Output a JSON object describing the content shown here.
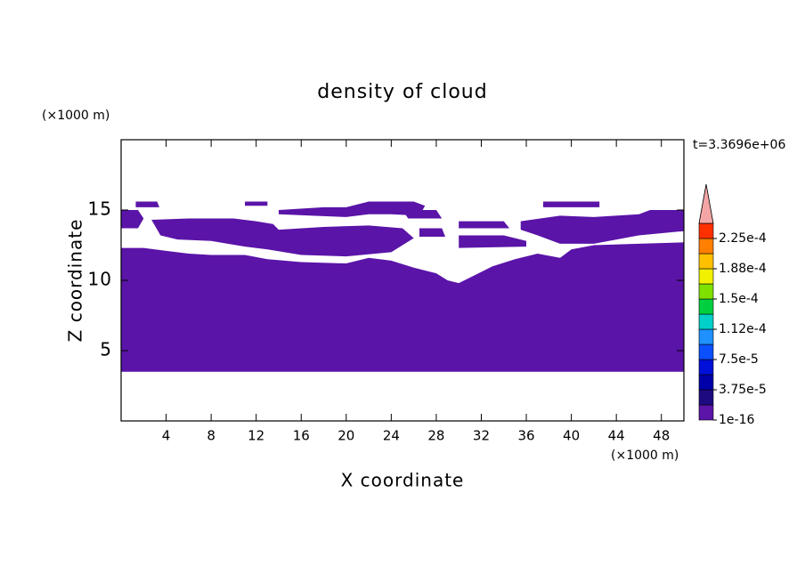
{
  "chart_data": {
    "type": "contour",
    "title": "density of cloud",
    "x_label": "X coordinate",
    "y_label": "Z coordinate",
    "x_unit": "(×1000 m)",
    "y_unit": "(×1000 m)",
    "annotation": "t=3.3696e+06",
    "xlim": [
      0,
      50
    ],
    "ylim": [
      0,
      20
    ],
    "xticks": [
      4,
      8,
      12,
      16,
      20,
      24,
      28,
      32,
      36,
      40,
      44,
      48
    ],
    "yticks": [
      5,
      10,
      15
    ],
    "fill_color": "#5a14a8",
    "regions": [
      {
        "x": [
          0,
          2,
          4,
          6,
          8,
          11,
          13,
          16,
          20,
          22,
          24,
          26,
          28,
          29,
          30,
          31,
          33,
          35,
          37,
          39,
          40,
          42,
          46,
          50,
          50,
          0
        ],
        "z": [
          12.3,
          12.3,
          12.1,
          11.9,
          11.8,
          11.8,
          11.5,
          11.3,
          11.2,
          11.6,
          11.4,
          10.9,
          10.5,
          10.0,
          9.8,
          10.2,
          11.0,
          11.5,
          11.9,
          11.6,
          12.2,
          12.5,
          12.6,
          12.7,
          3.5,
          3.5
        ]
      },
      {
        "x": [
          2.7,
          6,
          10,
          12,
          13.5,
          14,
          18,
          22,
          25,
          26,
          24,
          20,
          16,
          13,
          11,
          8,
          5,
          3.5
        ],
        "z": [
          14.3,
          14.4,
          14.4,
          14.2,
          14.0,
          13.6,
          13.8,
          13.9,
          13.7,
          13.0,
          12.0,
          11.7,
          11.8,
          12.2,
          12.4,
          12.8,
          12.9,
          13.2
        ]
      },
      {
        "x": [
          0,
          1.5,
          2,
          1.5,
          0
        ],
        "z": [
          15,
          15,
          14.4,
          13.7,
          13.7
        ]
      },
      {
        "x": [
          14,
          18,
          20,
          22,
          26,
          27,
          26.5,
          24,
          22,
          20,
          17,
          14
        ],
        "z": [
          15.0,
          15.2,
          15.2,
          15.6,
          15.6,
          15.3,
          14.6,
          14.7,
          14.7,
          14.5,
          14.6,
          14.7
        ]
      },
      {
        "x": [
          1.3,
          3.2,
          3.4,
          1.3
        ],
        "z": [
          15.6,
          15.6,
          15.2,
          15.2
        ]
      },
      {
        "x": [
          11,
          13,
          13,
          11
        ],
        "z": [
          15.6,
          15.6,
          15.3,
          15.3
        ]
      },
      {
        "x": [
          25,
          28,
          28.5,
          25.5
        ],
        "z": [
          15.0,
          15.0,
          14.4,
          14.4
        ]
      },
      {
        "x": [
          26.5,
          28.5,
          28.8,
          26.5
        ],
        "z": [
          13.7,
          13.7,
          13.1,
          13.1
        ]
      },
      {
        "x": [
          30,
          34,
          34.5,
          30
        ],
        "z": [
          14.2,
          14.2,
          13.7,
          13.7
        ]
      },
      {
        "x": [
          30,
          34,
          36,
          36,
          30
        ],
        "z": [
          13.2,
          13.2,
          12.8,
          12.4,
          12.3
        ]
      },
      {
        "x": [
          37.5,
          42.5,
          42.5,
          37.5
        ],
        "z": [
          15.6,
          15.6,
          15.2,
          15.2
        ]
      },
      {
        "x": [
          35.5,
          39,
          42,
          46,
          47,
          50,
          50,
          46,
          42,
          39,
          37,
          35.5
        ],
        "z": [
          14.2,
          14.6,
          14.5,
          14.7,
          15.0,
          15.0,
          13.5,
          13.2,
          12.6,
          12.6,
          13.2,
          13.6
        ]
      }
    ],
    "colorbar": {
      "lim": [
        0,
        0.00024375
      ],
      "colors": [
        "#5a14a8",
        "#1e0a80",
        "#0000a8",
        "#0010d8",
        "#0a50ff",
        "#1e90ff",
        "#00d0c8",
        "#00d040",
        "#80e000",
        "#f0f000",
        "#ffc000",
        "#ff8000",
        "#ff3000"
      ],
      "extend_color": "#f4a6a6",
      "ticks": [
        {
          "value": 1e-16,
          "label": "1e-16"
        },
        {
          "value": 3.75e-05,
          "label": "3.75e-5"
        },
        {
          "value": 7.5e-05,
          "label": "7.5e-5"
        },
        {
          "value": 0.0001125,
          "label": "1.12e-4"
        },
        {
          "value": 0.00015,
          "label": "1.5e-4"
        },
        {
          "value": 0.0001875,
          "label": "1.88e-4"
        },
        {
          "value": 0.000225,
          "label": "2.25e-4"
        }
      ]
    }
  }
}
